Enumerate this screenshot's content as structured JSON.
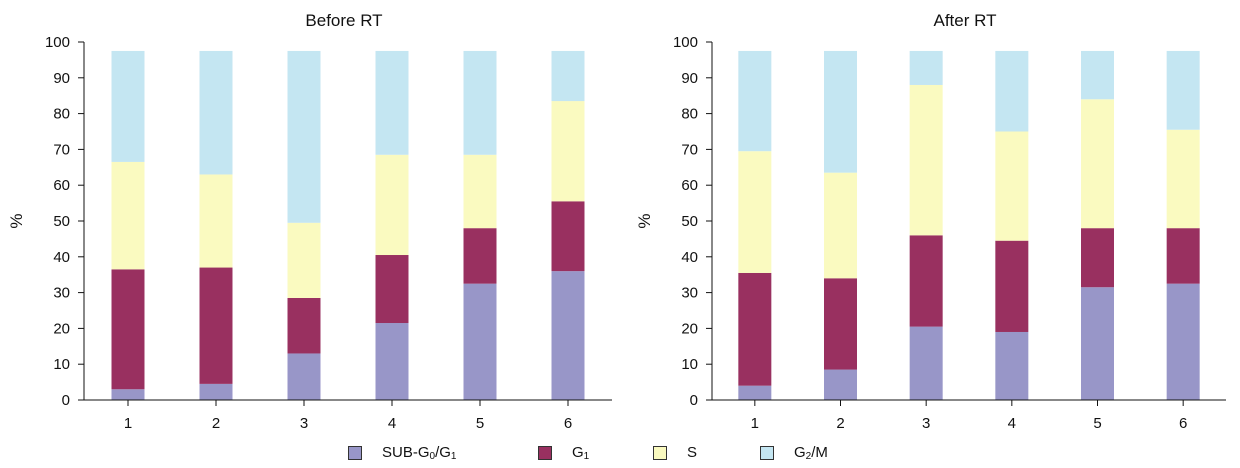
{
  "chart_data": [
    {
      "type": "bar",
      "stacked": true,
      "title": "Before RT",
      "ylabel": "%",
      "ylim": [
        0,
        100
      ],
      "yticks": [
        "0",
        "10",
        "20",
        "30",
        "40",
        "50",
        "60",
        "70",
        "80",
        "90",
        "100"
      ],
      "categories": [
        "1",
        "2",
        "3",
        "4",
        "5",
        "6"
      ],
      "series": [
        {
          "name": "SUB-G0/G1",
          "values": [
            3,
            4.5,
            13,
            21.5,
            32.5,
            36
          ]
        },
        {
          "name": "G1",
          "values": [
            33.5,
            32.5,
            15.5,
            19,
            15.5,
            19.5
          ]
        },
        {
          "name": "S",
          "values": [
            30,
            26,
            21,
            28,
            20.5,
            28
          ]
        },
        {
          "name": "G2/M",
          "values": [
            31,
            34.5,
            48,
            29,
            29,
            14
          ]
        }
      ]
    },
    {
      "type": "bar",
      "stacked": true,
      "title": "After RT",
      "ylabel": "%",
      "ylim": [
        0,
        100
      ],
      "yticks": [
        "0",
        "10",
        "20",
        "30",
        "40",
        "50",
        "60",
        "70",
        "80",
        "90",
        "100"
      ],
      "categories": [
        "1",
        "2",
        "3",
        "4",
        "5",
        "6"
      ],
      "series": [
        {
          "name": "SUB-G0/G1",
          "values": [
            4,
            8.5,
            20.5,
            19,
            31.5,
            32.5
          ]
        },
        {
          "name": "G1",
          "values": [
            31.5,
            25.5,
            25.5,
            25.5,
            16.5,
            15.5
          ]
        },
        {
          "name": "S",
          "values": [
            34,
            29.5,
            42,
            30.5,
            36,
            27.5
          ]
        },
        {
          "name": "G2/M",
          "values": [
            28,
            34,
            9.5,
            22.5,
            13.5,
            22
          ]
        }
      ]
    }
  ],
  "colors": {
    "SUB-G0/G1": "#9896c8",
    "G1": "#993060",
    "S": "#fafac0",
    "G2/M": "#c4e6f2"
  },
  "legend": [
    {
      "key": "SUB-G0/G1",
      "base": "SUB-G",
      "sub1": "0",
      "mid": "/G",
      "sub2": "1"
    },
    {
      "key": "G1",
      "base": "G",
      "sub1": "1",
      "mid": "",
      "sub2": ""
    },
    {
      "key": "S",
      "base": "S",
      "sub1": "",
      "mid": "",
      "sub2": ""
    },
    {
      "key": "G2/M",
      "base": "G",
      "sub1": "2",
      "mid": "/M",
      "sub2": ""
    }
  ]
}
